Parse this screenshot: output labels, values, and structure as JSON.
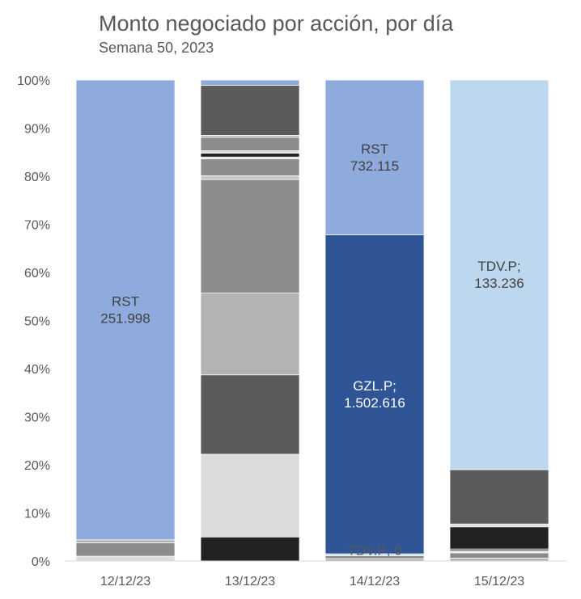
{
  "chart_data": {
    "type": "bar",
    "stacked": true,
    "percent": true,
    "title": "Monto negociado por acción, por día",
    "subtitle": "Semana 50, 2023",
    "categories": [
      "12/12/23",
      "13/12/23",
      "14/12/23",
      "15/12/23"
    ],
    "ylim": [
      0,
      100
    ],
    "y_ticks": [
      "0%",
      "10%",
      "20%",
      "30%",
      "40%",
      "50%",
      "60%",
      "70%",
      "80%",
      "90%",
      "100%"
    ],
    "grid": false,
    "legend": "none",
    "columns": [
      {
        "category": "12/12/23",
        "segments": [
          {
            "share": 1.0,
            "color": "#dcdcdc"
          },
          {
            "share": 2.8,
            "color": "#8c8c8c"
          },
          {
            "share": 0.6,
            "color": "#b3b3b3"
          },
          {
            "share": 95.6,
            "color": "#8faadc",
            "label": "RST",
            "value": "251.998"
          }
        ]
      },
      {
        "category": "13/12/23",
        "segments": [
          {
            "share": 5.0,
            "color": "#222222"
          },
          {
            "share": 17.2,
            "color": "#dcdcdc"
          },
          {
            "share": 16.5,
            "color": "#5b5b5b"
          },
          {
            "share": 17.0,
            "color": "#b3b3b3"
          },
          {
            "share": 23.6,
            "color": "#8c8c8c"
          },
          {
            "share": 0.8,
            "color": "#c8c8c8"
          },
          {
            "share": 3.5,
            "color": "#8c8c8c"
          },
          {
            "share": 0.4,
            "color": "#dcdcdc"
          },
          {
            "share": 0.8,
            "color": "#222222"
          },
          {
            "share": 0.5,
            "color": "#dcdcdc"
          },
          {
            "share": 2.8,
            "color": "#8c8c8c"
          },
          {
            "share": 0.4,
            "color": "#b3b3b3"
          },
          {
            "share": 10.4,
            "color": "#5b5b5b"
          },
          {
            "share": 1.1,
            "color": "#8faadc"
          }
        ]
      },
      {
        "category": "14/12/23",
        "segments": [
          {
            "share": 0.5,
            "color": "#b3b3b3"
          },
          {
            "share": 0.6,
            "color": "#8c8c8c"
          },
          {
            "share": 0.4,
            "color": "#bdd7ee",
            "label": "TDV.P; 0"
          },
          {
            "share": 66.3,
            "color": "#2f5597",
            "label": "GZL.P;",
            "value": "1.502.616"
          },
          {
            "share": 32.2,
            "color": "#8faadc",
            "label": "RST",
            "value": "732.115"
          }
        ]
      },
      {
        "category": "15/12/23",
        "segments": [
          {
            "share": 0.6,
            "color": "#b3b3b3"
          },
          {
            "share": 1.1,
            "color": "#8c8c8c"
          },
          {
            "share": 0.4,
            "color": "#dcdcdc"
          },
          {
            "share": 0.4,
            "color": "#5b5b5b"
          },
          {
            "share": 4.6,
            "color": "#222222"
          },
          {
            "share": 0.6,
            "color": "#dcdcdc"
          },
          {
            "share": 11.3,
            "color": "#5b5b5b"
          },
          {
            "share": 81.0,
            "color": "#bdd7ee",
            "label": "TDV.P;",
            "value": "133.236"
          }
        ]
      }
    ]
  }
}
